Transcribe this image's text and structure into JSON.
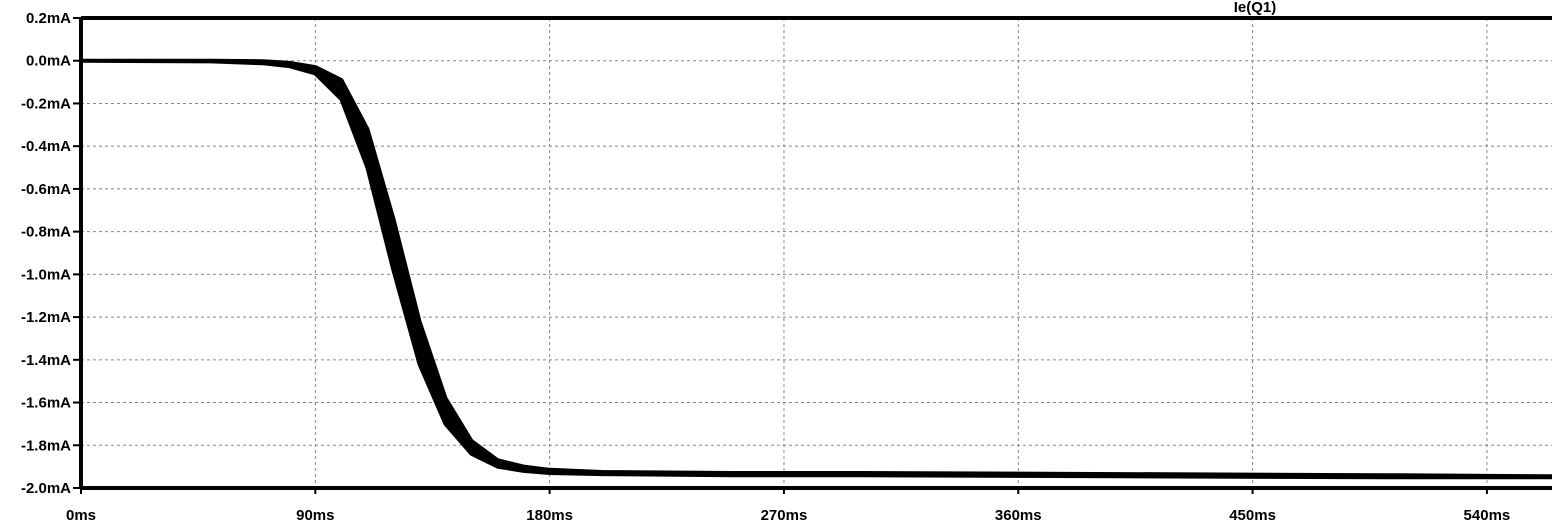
{
  "chart_data": {
    "type": "line",
    "title": "",
    "xlabel": "",
    "ylabel": "",
    "xlim": [
      0,
      565
    ],
    "ylim": [
      -2.0,
      0.2
    ],
    "x_unit": "ms",
    "y_unit": "mA",
    "grid": true,
    "x_ticks": [
      {
        "value": 0,
        "label": "0ms"
      },
      {
        "value": 90,
        "label": "90ms"
      },
      {
        "value": 180,
        "label": "180ms"
      },
      {
        "value": 270,
        "label": "270ms"
      },
      {
        "value": 360,
        "label": "360ms"
      },
      {
        "value": 450,
        "label": "450ms"
      },
      {
        "value": 540,
        "label": "540ms"
      }
    ],
    "y_ticks": [
      {
        "value": 0.2,
        "label": "0.2mA"
      },
      {
        "value": 0.0,
        "label": "0.0mA"
      },
      {
        "value": -0.2,
        "label": "-0.2mA"
      },
      {
        "value": -0.4,
        "label": "-0.4mA"
      },
      {
        "value": -0.6,
        "label": "-0.6mA"
      },
      {
        "value": -0.8,
        "label": "-0.8mA"
      },
      {
        "value": -1.0,
        "label": "-1.0mA"
      },
      {
        "value": -1.2,
        "label": "-1.2mA"
      },
      {
        "value": -1.4,
        "label": "-1.4mA"
      },
      {
        "value": -1.6,
        "label": "-1.6mA"
      },
      {
        "value": -1.8,
        "label": "-1.8mA"
      },
      {
        "value": -2.0,
        "label": "-2.0mA"
      }
    ],
    "series": [
      {
        "name": "Ie(Q1)",
        "color": "#000000",
        "x": [
          0,
          50,
          70,
          80,
          90,
          100,
          110,
          120,
          130,
          140,
          150,
          160,
          170,
          180,
          200,
          250,
          300,
          400,
          500,
          565
        ],
        "y_min": [
          0.0,
          -0.003,
          -0.012,
          -0.025,
          -0.06,
          -0.18,
          -0.5,
          -0.98,
          -1.42,
          -1.7,
          -1.84,
          -1.9,
          -1.92,
          -1.93,
          -1.935,
          -1.94,
          -1.94,
          -1.945,
          -1.95,
          -1.95
        ],
        "y_max": [
          0.0,
          0.0,
          -0.002,
          -0.01,
          -0.03,
          -0.09,
          -0.32,
          -0.74,
          -1.22,
          -1.58,
          -1.78,
          -1.87,
          -1.9,
          -1.915,
          -1.925,
          -1.93,
          -1.93,
          -1.935,
          -1.94,
          -1.945
        ]
      }
    ]
  }
}
